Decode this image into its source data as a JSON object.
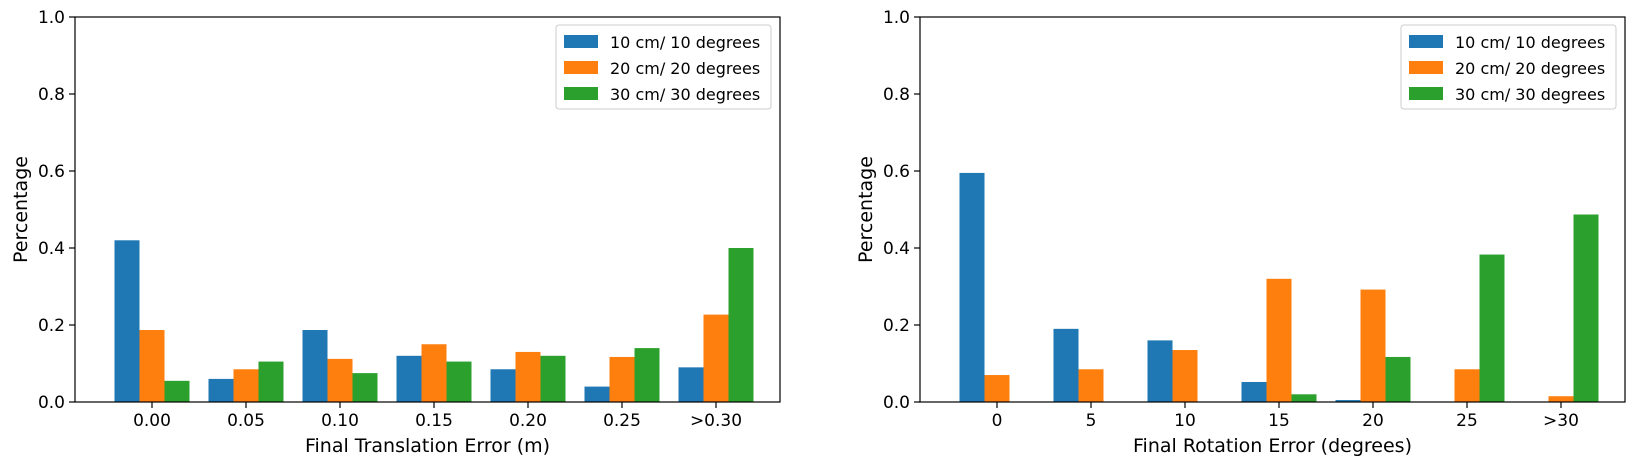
{
  "chart_data": [
    {
      "type": "bar",
      "xlabel": "Final Translation Error (m)",
      "ylabel": "Percentage",
      "ylim": [
        0,
        1
      ],
      "yticks": [
        "0.0",
        "0.2",
        "0.4",
        "0.6",
        "0.8",
        "1.0"
      ],
      "categories": [
        "0.00",
        "0.05",
        "0.10",
        "0.15",
        "0.20",
        "0.25",
        ">0.30"
      ],
      "legend_position": "top-right",
      "grid": false,
      "series": [
        {
          "name": "10 cm/ 10 degrees",
          "color": "#1f77b4",
          "values": [
            0.42,
            0.06,
            0.187,
            0.12,
            0.085,
            0.04,
            0.09
          ]
        },
        {
          "name": "20 cm/ 20 degrees",
          "color": "#ff7f0e",
          "values": [
            0.187,
            0.085,
            0.112,
            0.15,
            0.13,
            0.117,
            0.227
          ]
        },
        {
          "name": "30 cm/ 30 degrees",
          "color": "#2ca02c",
          "values": [
            0.055,
            0.105,
            0.075,
            0.105,
            0.12,
            0.14,
            0.4
          ]
        }
      ]
    },
    {
      "type": "bar",
      "xlabel": "Final Rotation Error (degrees)",
      "ylabel": "Percentage",
      "ylim": [
        0,
        1
      ],
      "yticks": [
        "0.0",
        "0.2",
        "0.4",
        "0.6",
        "0.8",
        "1.0"
      ],
      "categories": [
        "0",
        "5",
        "10",
        "15",
        "20",
        "25",
        ">30"
      ],
      "legend_position": "top-right",
      "grid": false,
      "series": [
        {
          "name": "10 cm/ 10 degrees",
          "color": "#1f77b4",
          "values": [
            0.595,
            0.19,
            0.16,
            0.052,
            0.005,
            0.0,
            0.0
          ]
        },
        {
          "name": "20 cm/ 20 degrees",
          "color": "#ff7f0e",
          "values": [
            0.07,
            0.085,
            0.135,
            0.32,
            0.292,
            0.085,
            0.015
          ]
        },
        {
          "name": "30 cm/ 30 degrees",
          "color": "#2ca02c",
          "values": [
            0.0,
            0.0,
            0.0,
            0.02,
            0.117,
            0.383,
            0.487
          ]
        }
      ]
    }
  ]
}
